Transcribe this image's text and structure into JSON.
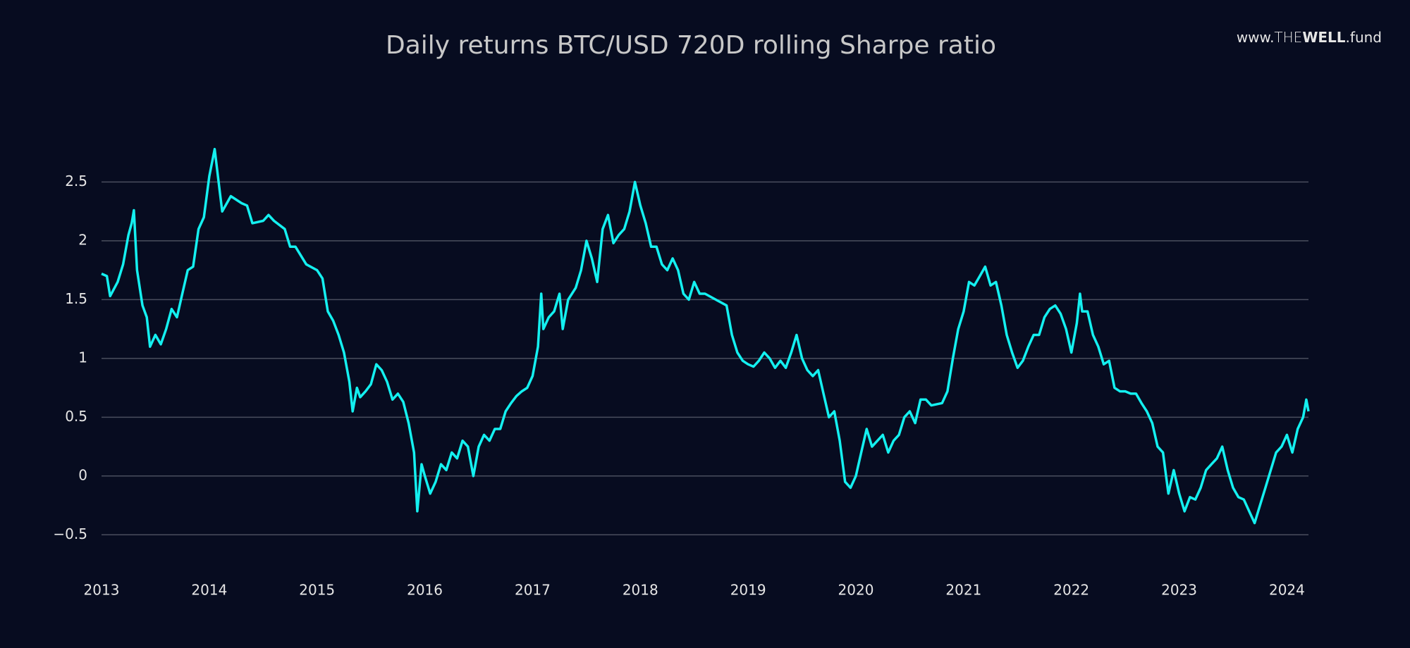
{
  "chart_data": {
    "type": "line",
    "title": "Daily returns BTC/USD 720D rolling Sharpe ratio",
    "brand": {
      "prefix": "www.",
      "the": "THE",
      "well": "WELL",
      "suffix": ".fund"
    },
    "xlim": [
      2013,
      2024.2
    ],
    "xticks": [
      2013,
      2014,
      2015,
      2016,
      2017,
      2018,
      2019,
      2020,
      2021,
      2022,
      2023,
      2024
    ],
    "ylim": [
      -0.75,
      2.85
    ],
    "yticks": [
      {
        "value": -0.5,
        "label": "−0.5"
      },
      0,
      0.5,
      1,
      1.5,
      2,
      2.5
    ],
    "grid": true,
    "x": [
      2013.0,
      2013.05,
      2013.08,
      2013.15,
      2013.2,
      2013.25,
      2013.28,
      2013.3,
      2013.33,
      2013.38,
      2013.42,
      2013.45,
      2013.5,
      2013.55,
      2013.6,
      2013.65,
      2013.7,
      2013.75,
      2013.8,
      2013.85,
      2013.9,
      2013.95,
      2014.0,
      2014.05,
      2014.1,
      2014.12,
      2014.2,
      2014.3,
      2014.35,
      2014.4,
      2014.5,
      2014.55,
      2014.6,
      2014.7,
      2014.75,
      2014.8,
      2014.9,
      2015.0,
      2015.05,
      2015.1,
      2015.15,
      2015.2,
      2015.25,
      2015.3,
      2015.33,
      2015.37,
      2015.4,
      2015.45,
      2015.5,
      2015.55,
      2015.6,
      2015.65,
      2015.7,
      2015.75,
      2015.8,
      2015.85,
      2015.9,
      2015.93,
      2015.97,
      2016.0,
      2016.05,
      2016.1,
      2016.15,
      2016.2,
      2016.25,
      2016.3,
      2016.35,
      2016.4,
      2016.45,
      2016.5,
      2016.55,
      2016.6,
      2016.65,
      2016.7,
      2016.75,
      2016.8,
      2016.85,
      2016.9,
      2016.95,
      2017.0,
      2017.05,
      2017.08,
      2017.1,
      2017.15,
      2017.2,
      2017.25,
      2017.28,
      2017.33,
      2017.4,
      2017.45,
      2017.5,
      2017.55,
      2017.6,
      2017.65,
      2017.7,
      2017.75,
      2017.8,
      2017.85,
      2017.9,
      2017.95,
      2018.0,
      2018.05,
      2018.1,
      2018.15,
      2018.2,
      2018.25,
      2018.3,
      2018.35,
      2018.4,
      2018.45,
      2018.5,
      2018.55,
      2018.6,
      2018.7,
      2018.8,
      2018.85,
      2018.9,
      2018.95,
      2019.0,
      2019.05,
      2019.1,
      2019.15,
      2019.2,
      2019.25,
      2019.3,
      2019.35,
      2019.4,
      2019.45,
      2019.5,
      2019.55,
      2019.6,
      2019.65,
      2019.7,
      2019.75,
      2019.8,
      2019.85,
      2019.9,
      2019.95,
      2020.0,
      2020.05,
      2020.1,
      2020.15,
      2020.2,
      2020.25,
      2020.3,
      2020.35,
      2020.4,
      2020.45,
      2020.5,
      2020.55,
      2020.6,
      2020.65,
      2020.7,
      2020.8,
      2020.85,
      2020.9,
      2020.95,
      2021.0,
      2021.05,
      2021.1,
      2021.15,
      2021.2,
      2021.25,
      2021.3,
      2021.35,
      2021.4,
      2021.45,
      2021.5,
      2021.55,
      2021.6,
      2021.65,
      2021.7,
      2021.75,
      2021.8,
      2021.85,
      2021.9,
      2021.95,
      2022.0,
      2022.05,
      2022.08,
      2022.1,
      2022.15,
      2022.2,
      2022.25,
      2022.3,
      2022.35,
      2022.4,
      2022.45,
      2022.5,
      2022.55,
      2022.6,
      2022.65,
      2022.7,
      2022.75,
      2022.8,
      2022.85,
      2022.9,
      2022.95,
      2023.0,
      2023.05,
      2023.1,
      2023.15,
      2023.2,
      2023.25,
      2023.3,
      2023.35,
      2023.4,
      2023.45,
      2023.5,
      2023.55,
      2023.6,
      2023.65,
      2023.7,
      2023.75,
      2023.8,
      2023.85,
      2023.9,
      2023.95,
      2024.0,
      2024.05,
      2024.1,
      2024.15,
      2024.18,
      2024.2
    ],
    "series": [
      {
        "name": "Sharpe ratio",
        "color": "#14f0f0",
        "values": [
          1.72,
          1.7,
          1.53,
          1.65,
          1.8,
          2.05,
          2.15,
          2.26,
          1.75,
          1.45,
          1.35,
          1.1,
          1.2,
          1.12,
          1.25,
          1.42,
          1.35,
          1.55,
          1.75,
          1.78,
          2.1,
          2.2,
          2.55,
          2.78,
          2.4,
          2.25,
          2.38,
          2.32,
          2.3,
          2.15,
          2.17,
          2.22,
          2.17,
          2.1,
          1.95,
          1.95,
          1.8,
          1.75,
          1.68,
          1.4,
          1.32,
          1.2,
          1.05,
          0.8,
          0.55,
          0.75,
          0.67,
          0.72,
          0.78,
          0.95,
          0.9,
          0.8,
          0.65,
          0.7,
          0.63,
          0.45,
          0.2,
          -0.3,
          0.1,
          0.0,
          -0.15,
          -0.05,
          0.1,
          0.05,
          0.2,
          0.15,
          0.3,
          0.25,
          0.0,
          0.25,
          0.35,
          0.3,
          0.4,
          0.4,
          0.55,
          0.62,
          0.68,
          0.72,
          0.75,
          0.85,
          1.1,
          1.55,
          1.25,
          1.35,
          1.4,
          1.55,
          1.25,
          1.5,
          1.6,
          1.75,
          2.0,
          1.85,
          1.65,
          2.1,
          2.22,
          1.98,
          2.05,
          2.1,
          2.25,
          2.5,
          2.3,
          2.15,
          1.95,
          1.95,
          1.8,
          1.75,
          1.85,
          1.75,
          1.55,
          1.5,
          1.65,
          1.55,
          1.55,
          1.5,
          1.45,
          1.2,
          1.05,
          0.98,
          0.95,
          0.93,
          0.98,
          1.05,
          1.0,
          0.92,
          0.98,
          0.92,
          1.05,
          1.2,
          1.0,
          0.9,
          0.85,
          0.9,
          0.7,
          0.5,
          0.55,
          0.3,
          -0.05,
          -0.1,
          0.0,
          0.2,
          0.4,
          0.25,
          0.3,
          0.35,
          0.2,
          0.3,
          0.35,
          0.5,
          0.55,
          0.45,
          0.65,
          0.65,
          0.6,
          0.62,
          0.72,
          1.0,
          1.25,
          1.4,
          1.65,
          1.62,
          1.7,
          1.78,
          1.62,
          1.65,
          1.45,
          1.2,
          1.05,
          0.92,
          0.98,
          1.1,
          1.2,
          1.2,
          1.35,
          1.42,
          1.45,
          1.38,
          1.25,
          1.05,
          1.3,
          1.55,
          1.4,
          1.4,
          1.2,
          1.1,
          0.95,
          0.98,
          0.75,
          0.72,
          0.72,
          0.7,
          0.7,
          0.62,
          0.55,
          0.45,
          0.25,
          0.2,
          -0.15,
          0.05,
          -0.15,
          -0.3,
          -0.18,
          -0.2,
          -0.1,
          0.05,
          0.1,
          0.15,
          0.25,
          0.05,
          -0.1,
          -0.18,
          -0.2,
          -0.3,
          -0.4,
          -0.25,
          -0.1,
          0.05,
          0.2,
          0.25,
          0.35,
          0.2,
          0.4,
          0.5,
          0.65,
          0.55
        ]
      }
    ]
  }
}
